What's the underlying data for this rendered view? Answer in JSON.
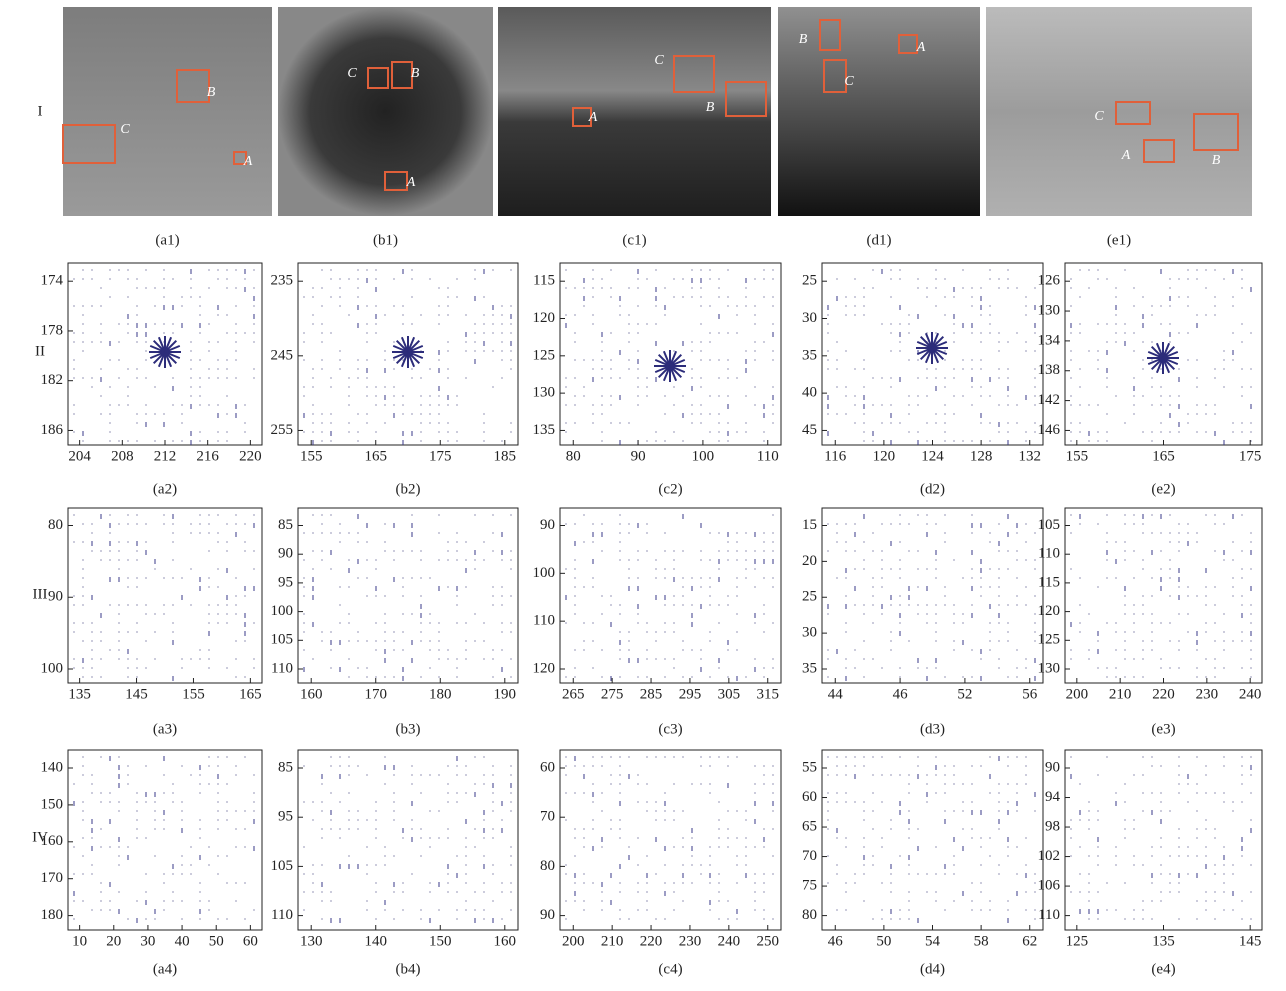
{
  "row_labels": [
    "I",
    "II",
    "III",
    "IV"
  ],
  "images": [
    {
      "caption": "(a1)",
      "boxes": [
        "A",
        "B",
        "C"
      ]
    },
    {
      "caption": "(b1)",
      "boxes": [
        "C",
        "B",
        "A"
      ]
    },
    {
      "caption": "(c1)",
      "boxes": [
        "A",
        "C",
        "B"
      ]
    },
    {
      "caption": "(d1)",
      "boxes": [
        "B",
        "A",
        "C"
      ]
    },
    {
      "caption": "(e1)",
      "boxes": [
        "C",
        "A",
        "B"
      ]
    }
  ],
  "plots": [
    [
      {
        "caption": "(a2)",
        "yticks": [
          174,
          178,
          182,
          186
        ],
        "xticks": [
          204,
          208,
          212,
          216,
          220
        ]
      },
      {
        "caption": "(b2)",
        "yticks": [
          235,
          245,
          255
        ],
        "xticks": [
          155,
          165,
          175,
          185
        ]
      },
      {
        "caption": "(c2)",
        "yticks": [
          115,
          120,
          125,
          130,
          135
        ],
        "xticks": [
          80,
          90,
          100,
          110
        ]
      },
      {
        "caption": "(d2)",
        "yticks": [
          25,
          30,
          35,
          40,
          45
        ],
        "xticks": [
          116,
          120,
          124,
          128,
          132
        ]
      },
      {
        "caption": "(e2)",
        "yticks": [
          126,
          130,
          134,
          138,
          142,
          146
        ],
        "xticks": [
          155,
          165,
          175
        ]
      }
    ],
    [
      {
        "caption": "(a3)",
        "yticks": [
          80,
          90,
          100
        ],
        "xticks": [
          135,
          145,
          155,
          165
        ]
      },
      {
        "caption": "(b3)",
        "yticks": [
          85,
          90,
          95,
          100,
          105,
          110
        ],
        "xticks": [
          160,
          170,
          180,
          190
        ]
      },
      {
        "caption": "(c3)",
        "yticks": [
          90,
          100,
          110,
          120
        ],
        "xticks": [
          265,
          275,
          285,
          295,
          305,
          315
        ]
      },
      {
        "caption": "(d3)",
        "yticks": [
          15,
          20,
          25,
          30,
          35
        ],
        "xticks": [
          44,
          46,
          52,
          56
        ]
      },
      {
        "caption": "(e3)",
        "yticks": [
          105,
          110,
          115,
          120,
          125,
          130
        ],
        "xticks": [
          200,
          210,
          220,
          230,
          240
        ]
      }
    ],
    [
      {
        "caption": "(a4)",
        "yticks": [
          140,
          150,
          160,
          170,
          180
        ],
        "xticks": [
          10,
          20,
          30,
          40,
          50,
          60
        ]
      },
      {
        "caption": "(b4)",
        "yticks": [
          85,
          95,
          105,
          110
        ],
        "xticks": [
          130,
          140,
          150,
          160
        ]
      },
      {
        "caption": "(c4)",
        "yticks": [
          60,
          70,
          80,
          90
        ],
        "xticks": [
          200,
          210,
          220,
          230,
          240,
          250
        ]
      },
      {
        "caption": "(d4)",
        "yticks": [
          55,
          60,
          65,
          70,
          75,
          80
        ],
        "xticks": [
          46,
          50,
          54,
          58,
          62
        ]
      },
      {
        "caption": "(e4)",
        "yticks": [
          90,
          94,
          98,
          102,
          106,
          110
        ],
        "xticks": [
          125,
          135,
          145
        ]
      }
    ]
  ]
}
